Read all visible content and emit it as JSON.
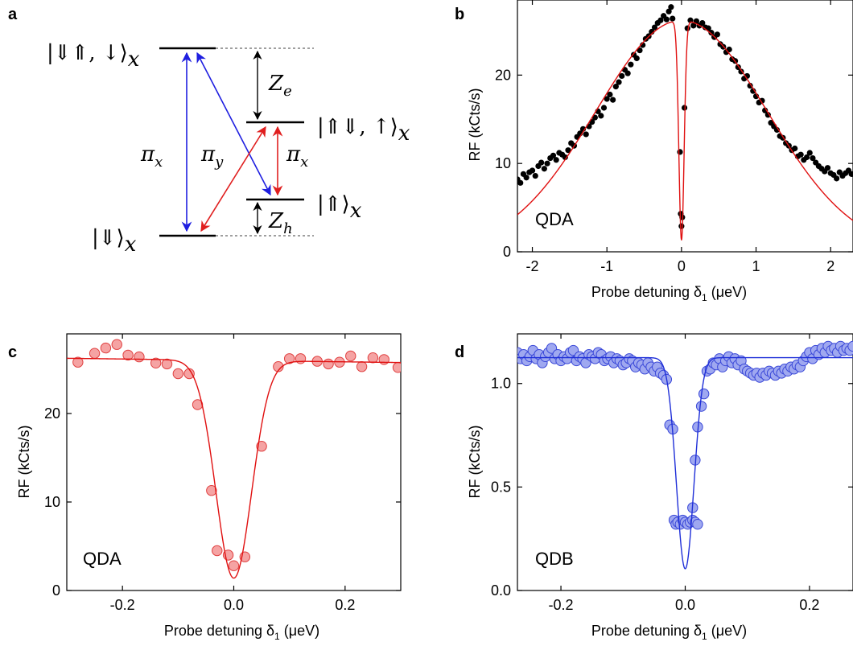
{
  "chart_data": [
    {
      "panel": "a",
      "type": "diagram",
      "levels": [
        {
          "label_main": "|⇓⇑, ↓⟩",
          "label_sub": "x"
        },
        {
          "label_main": "|⇑⇓, ↑⟩",
          "label_sub": "x"
        },
        {
          "label_main": "|⇑⟩",
          "label_sub": "x"
        },
        {
          "label_main": "|⇓⟩",
          "label_sub": "x"
        }
      ],
      "transitions": [
        {
          "label": "π",
          "sub": "x",
          "color": "#1f1fe0"
        },
        {
          "label": "π",
          "sub": "y",
          "color": "#e01f1f"
        },
        {
          "label": "π",
          "sub": "x",
          "color": "#e01f1f"
        }
      ],
      "splittings": [
        {
          "label": "Z",
          "sub": "e"
        },
        {
          "label": "Z",
          "sub": "h"
        }
      ]
    },
    {
      "panel": "b",
      "type": "scatter",
      "inset_label": "QDA",
      "xlabel_main": "Probe detuning δ",
      "xlabel_sub": "1",
      "xlabel_unit": " (μeV)",
      "ylabel": "RF (kCts/s)",
      "xlim": [
        -2.2,
        2.3
      ],
      "ylim": [
        0,
        28.5
      ],
      "xticks": [
        -2,
        -1,
        0,
        1,
        2
      ],
      "yticks": [
        0,
        10,
        20
      ],
      "marker_color": "#000000",
      "fit_color": "#e01010",
      "fit": {
        "A": 26.2,
        "sigma": 1.15,
        "depth": 0.95,
        "width": 0.035
      },
      "points": [
        [
          -2.2,
          8.2
        ],
        [
          -2.16,
          7.8
        ],
        [
          -2.12,
          8.8
        ],
        [
          -2.08,
          8.4
        ],
        [
          -2.04,
          9.0
        ],
        [
          -2.0,
          9.2
        ],
        [
          -1.96,
          8.6
        ],
        [
          -1.92,
          9.7
        ],
        [
          -1.88,
          10.1
        ],
        [
          -1.84,
          9.4
        ],
        [
          -1.8,
          10.0
        ],
        [
          -1.76,
          10.6
        ],
        [
          -1.72,
          10.9
        ],
        [
          -1.68,
          10.4
        ],
        [
          -1.64,
          11.2
        ],
        [
          -1.6,
          11.0
        ],
        [
          -1.56,
          10.7
        ],
        [
          -1.52,
          11.5
        ],
        [
          -1.48,
          12.3
        ],
        [
          -1.44,
          12.0
        ],
        [
          -1.4,
          13.0
        ],
        [
          -1.36,
          13.4
        ],
        [
          -1.32,
          13.9
        ],
        [
          -1.28,
          13.3
        ],
        [
          -1.24,
          14.2
        ],
        [
          -1.2,
          14.7
        ],
        [
          -1.16,
          15.2
        ],
        [
          -1.12,
          15.9
        ],
        [
          -1.08,
          15.4
        ],
        [
          -1.04,
          16.3
        ],
        [
          -1.0,
          17.3
        ],
        [
          -0.96,
          17.8
        ],
        [
          -0.92,
          17.2
        ],
        [
          -0.88,
          18.7
        ],
        [
          -0.84,
          19.2
        ],
        [
          -0.8,
          19.9
        ],
        [
          -0.76,
          20.6
        ],
        [
          -0.72,
          20.2
        ],
        [
          -0.68,
          21.2
        ],
        [
          -0.64,
          22.3
        ],
        [
          -0.6,
          21.9
        ],
        [
          -0.56,
          22.8
        ],
        [
          -0.52,
          23.4
        ],
        [
          -0.48,
          24.1
        ],
        [
          -0.44,
          24.4
        ],
        [
          -0.4,
          24.9
        ],
        [
          -0.36,
          25.4
        ],
        [
          -0.32,
          25.9
        ],
        [
          -0.28,
          26.2
        ],
        [
          -0.24,
          26.7
        ],
        [
          -0.2,
          26.3
        ],
        [
          -0.17,
          27.2
        ],
        [
          -0.14,
          27.7
        ],
        [
          -0.12,
          26.4
        ],
        [
          -0.02,
          11.3
        ],
        [
          -0.01,
          4.3
        ],
        [
          0.0,
          2.9
        ],
        [
          0.01,
          3.9
        ],
        [
          0.04,
          16.3
        ],
        [
          0.08,
          25.3
        ],
        [
          0.12,
          26.2
        ],
        [
          0.16,
          25.6
        ],
        [
          0.2,
          26.1
        ],
        [
          0.24,
          25.6
        ],
        [
          0.28,
          25.9
        ],
        [
          0.32,
          25.4
        ],
        [
          0.36,
          25.3
        ],
        [
          0.4,
          24.8
        ],
        [
          0.44,
          24.3
        ],
        [
          0.48,
          24.6
        ],
        [
          0.52,
          23.5
        ],
        [
          0.56,
          23.2
        ],
        [
          0.6,
          22.6
        ],
        [
          0.64,
          22.9
        ],
        [
          0.68,
          21.8
        ],
        [
          0.72,
          21.6
        ],
        [
          0.76,
          20.9
        ],
        [
          0.8,
          20.4
        ],
        [
          0.84,
          19.6
        ],
        [
          0.88,
          19.9
        ],
        [
          0.92,
          18.8
        ],
        [
          0.96,
          18.2
        ],
        [
          1.0,
          17.6
        ],
        [
          1.04,
          16.9
        ],
        [
          1.08,
          17.1
        ],
        [
          1.12,
          16.0
        ],
        [
          1.16,
          15.5
        ],
        [
          1.2,
          14.6
        ],
        [
          1.24,
          14.2
        ],
        [
          1.28,
          13.8
        ],
        [
          1.32,
          13.1
        ],
        [
          1.36,
          12.9
        ],
        [
          1.4,
          12.3
        ],
        [
          1.44,
          12.0
        ],
        [
          1.48,
          11.5
        ],
        [
          1.52,
          11.7
        ],
        [
          1.56,
          10.8
        ],
        [
          1.6,
          11.0
        ],
        [
          1.64,
          10.4
        ],
        [
          1.68,
          10.7
        ],
        [
          1.72,
          11.2
        ],
        [
          1.76,
          10.6
        ],
        [
          1.8,
          10.1
        ],
        [
          1.84,
          9.7
        ],
        [
          1.88,
          9.4
        ],
        [
          1.92,
          9.1
        ],
        [
          1.96,
          9.5
        ],
        [
          2.0,
          8.9
        ],
        [
          2.04,
          8.7
        ],
        [
          2.08,
          8.3
        ],
        [
          2.12,
          9.0
        ],
        [
          2.16,
          8.6
        ],
        [
          2.2,
          8.9
        ],
        [
          2.24,
          9.2
        ],
        [
          2.28,
          8.8
        ]
      ]
    },
    {
      "panel": "c",
      "type": "scatter",
      "inset_label": "QDA",
      "xlabel_main": "Probe detuning δ",
      "xlabel_sub": "1",
      "xlabel_unit": " (μeV)",
      "ylabel": "RF (kCts/s)",
      "xlim": [
        -0.3,
        0.3
      ],
      "ylim": [
        0,
        29
      ],
      "xticks": [
        -0.2,
        0.0,
        0.2
      ],
      "yticks": [
        0,
        10,
        20
      ],
      "marker_color": "#f5a3a3",
      "marker_edge": "#e04040",
      "fit_color": "#e01010",
      "fit": {
        "A": 26.0,
        "depth": 24.6,
        "sigma": 0.032,
        "tilt": -0.8
      },
      "points": [
        [
          -0.28,
          25.8
        ],
        [
          -0.25,
          26.8
        ],
        [
          -0.23,
          27.4
        ],
        [
          -0.21,
          27.8
        ],
        [
          -0.19,
          26.6
        ],
        [
          -0.17,
          26.4
        ],
        [
          -0.14,
          25.7
        ],
        [
          -0.12,
          25.6
        ],
        [
          -0.1,
          24.5
        ],
        [
          -0.08,
          24.5
        ],
        [
          -0.065,
          21.0
        ],
        [
          -0.04,
          11.3
        ],
        [
          -0.03,
          4.5
        ],
        [
          -0.01,
          4.0
        ],
        [
          0.0,
          2.8
        ],
        [
          0.02,
          3.8
        ],
        [
          0.05,
          16.3
        ],
        [
          0.08,
          25.3
        ],
        [
          0.1,
          26.2
        ],
        [
          0.12,
          26.2
        ],
        [
          0.15,
          25.9
        ],
        [
          0.17,
          25.6
        ],
        [
          0.19,
          25.8
        ],
        [
          0.21,
          26.5
        ],
        [
          0.23,
          25.3
        ],
        [
          0.25,
          26.3
        ],
        [
          0.27,
          26.1
        ],
        [
          0.295,
          25.2
        ]
      ]
    },
    {
      "panel": "d",
      "type": "scatter",
      "inset_label": "QDB",
      "xlabel_main": "Probe detuning δ",
      "xlabel_sub": "1",
      "xlabel_unit": " (μeV)",
      "ylabel": "RF (kCts/s)",
      "xlim": [
        -0.27,
        0.27
      ],
      "ylim": [
        0,
        1.24
      ],
      "xticks": [
        -0.2,
        0.0,
        0.2
      ],
      "yticks": [
        0.0,
        0.5,
        1.0
      ],
      "ytick_labels": [
        "0.0",
        "0.5",
        "1.0"
      ],
      "marker_color": "#9fa8f0",
      "marker_edge": "#3a48d8",
      "fit_color": "#1f2fd8",
      "fit": {
        "A": 1.125,
        "depth": 1.02,
        "sigma": 0.014,
        "tilt": 0.0
      },
      "points": [
        [
          -0.27,
          1.15
        ],
        [
          -0.265,
          1.12
        ],
        [
          -0.26,
          1.14
        ],
        [
          -0.255,
          1.11
        ],
        [
          -0.25,
          1.13
        ],
        [
          -0.245,
          1.16
        ],
        [
          -0.24,
          1.12
        ],
        [
          -0.235,
          1.14
        ],
        [
          -0.23,
          1.1
        ],
        [
          -0.225,
          1.13
        ],
        [
          -0.22,
          1.15
        ],
        [
          -0.215,
          1.17
        ],
        [
          -0.21,
          1.12
        ],
        [
          -0.205,
          1.14
        ],
        [
          -0.2,
          1.11
        ],
        [
          -0.195,
          1.13
        ],
        [
          -0.19,
          1.12
        ],
        [
          -0.185,
          1.15
        ],
        [
          -0.18,
          1.16
        ],
        [
          -0.175,
          1.11
        ],
        [
          -0.17,
          1.13
        ],
        [
          -0.165,
          1.12
        ],
        [
          -0.16,
          1.1
        ],
        [
          -0.155,
          1.14
        ],
        [
          -0.15,
          1.13
        ],
        [
          -0.145,
          1.12
        ],
        [
          -0.14,
          1.15
        ],
        [
          -0.135,
          1.14
        ],
        [
          -0.13,
          1.11
        ],
        [
          -0.125,
          1.12
        ],
        [
          -0.12,
          1.13
        ],
        [
          -0.115,
          1.1
        ],
        [
          -0.11,
          1.12
        ],
        [
          -0.105,
          1.11
        ],
        [
          -0.1,
          1.09
        ],
        [
          -0.095,
          1.1
        ],
        [
          -0.09,
          1.12
        ],
        [
          -0.085,
          1.11
        ],
        [
          -0.08,
          1.08
        ],
        [
          -0.075,
          1.1
        ],
        [
          -0.07,
          1.09
        ],
        [
          -0.065,
          1.07
        ],
        [
          -0.06,
          1.1
        ],
        [
          -0.055,
          1.08
        ],
        [
          -0.05,
          1.06
        ],
        [
          -0.045,
          1.08
        ],
        [
          -0.04,
          1.05
        ],
        [
          -0.035,
          1.04
        ],
        [
          -0.03,
          1.02
        ],
        [
          -0.025,
          0.8
        ],
        [
          -0.02,
          0.78
        ],
        [
          -0.018,
          0.34
        ],
        [
          -0.015,
          0.32
        ],
        [
          -0.012,
          0.33
        ],
        [
          -0.008,
          0.32
        ],
        [
          -0.004,
          0.34
        ],
        [
          0.0,
          0.33
        ],
        [
          0.004,
          0.32
        ],
        [
          0.008,
          0.33
        ],
        [
          0.012,
          0.34
        ],
        [
          0.016,
          0.33
        ],
        [
          0.02,
          0.32
        ],
        [
          0.012,
          0.4
        ],
        [
          0.016,
          0.63
        ],
        [
          0.02,
          0.79
        ],
        [
          0.026,
          0.89
        ],
        [
          0.03,
          0.95
        ],
        [
          0.035,
          1.06
        ],
        [
          0.04,
          1.07
        ],
        [
          0.045,
          1.1
        ],
        [
          0.05,
          1.09
        ],
        [
          0.055,
          1.12
        ],
        [
          0.06,
          1.08
        ],
        [
          0.065,
          1.11
        ],
        [
          0.07,
          1.13
        ],
        [
          0.075,
          1.1
        ],
        [
          0.08,
          1.12
        ],
        [
          0.085,
          1.09
        ],
        [
          0.09,
          1.11
        ],
        [
          0.095,
          1.07
        ],
        [
          0.1,
          1.06
        ],
        [
          0.105,
          1.05
        ],
        [
          0.11,
          1.04
        ],
        [
          0.115,
          1.05
        ],
        [
          0.12,
          1.03
        ],
        [
          0.125,
          1.05
        ],
        [
          0.13,
          1.04
        ],
        [
          0.135,
          1.06
        ],
        [
          0.14,
          1.05
        ],
        [
          0.145,
          1.04
        ],
        [
          0.15,
          1.06
        ],
        [
          0.155,
          1.05
        ],
        [
          0.16,
          1.07
        ],
        [
          0.165,
          1.06
        ],
        [
          0.17,
          1.08
        ],
        [
          0.175,
          1.07
        ],
        [
          0.18,
          1.09
        ],
        [
          0.185,
          1.08
        ],
        [
          0.19,
          1.11
        ],
        [
          0.195,
          1.13
        ],
        [
          0.2,
          1.15
        ],
        [
          0.205,
          1.12
        ],
        [
          0.21,
          1.16
        ],
        [
          0.215,
          1.14
        ],
        [
          0.22,
          1.17
        ],
        [
          0.225,
          1.15
        ],
        [
          0.23,
          1.18
        ],
        [
          0.235,
          1.16
        ],
        [
          0.24,
          1.17
        ],
        [
          0.245,
          1.15
        ],
        [
          0.25,
          1.18
        ],
        [
          0.255,
          1.16
        ],
        [
          0.26,
          1.17
        ],
        [
          0.265,
          1.16
        ],
        [
          0.27,
          1.18
        ]
      ]
    }
  ],
  "panel_labels": {
    "a": "a",
    "b": "b",
    "c": "c",
    "d": "d"
  }
}
